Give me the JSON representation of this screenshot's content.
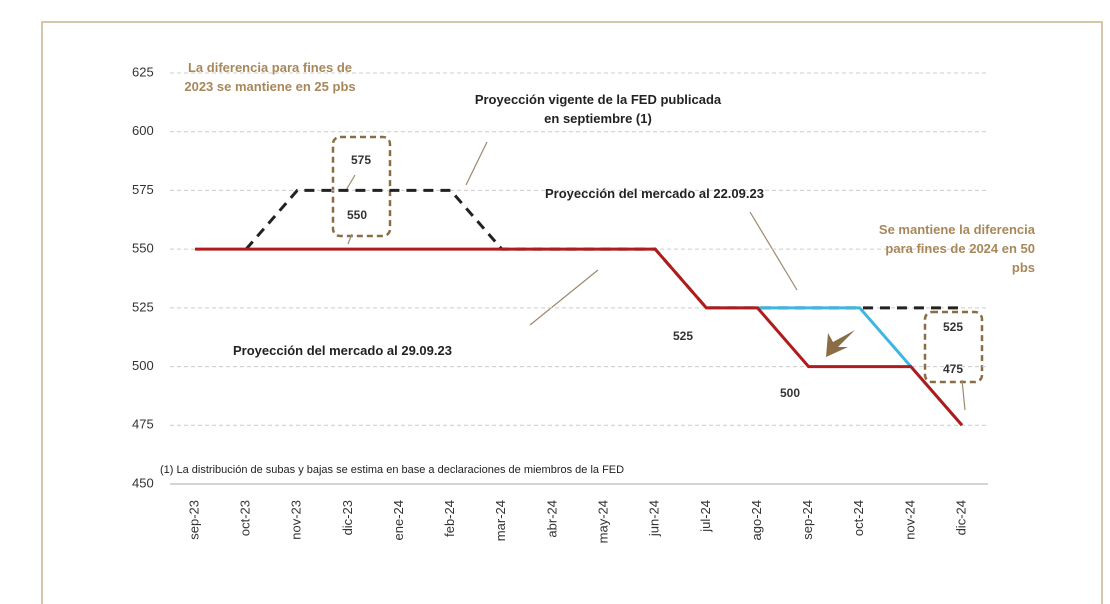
{
  "chart_data": {
    "type": "line",
    "categories": [
      "sep-23",
      "oct-23",
      "nov-23",
      "dic-23",
      "ene-24",
      "feb-24",
      "mar-24",
      "abr-24",
      "may-24",
      "jun-24",
      "jul-24",
      "ago-24",
      "sep-24",
      "oct-24",
      "nov-24",
      "dic-24"
    ],
    "series": [
      {
        "name": "Proyección vigente de la FED publicada en septiembre (1)",
        "color": "#222222",
        "dashed": true,
        "values": [
          null,
          550,
          575,
          575,
          575,
          575,
          550,
          550,
          550,
          550,
          525,
          525,
          525,
          525,
          525,
          525
        ]
      },
      {
        "name": "Proyección del mercado al 22.09.23",
        "color": "#3fb6e0",
        "dashed": false,
        "values": [
          null,
          null,
          null,
          null,
          null,
          null,
          null,
          null,
          null,
          null,
          525,
          525,
          525,
          525,
          500,
          475
        ]
      },
      {
        "name": "Proyección del mercado al 29.09.23",
        "color": "#b01c1c",
        "dashed": false,
        "values": [
          550,
          550,
          550,
          550,
          550,
          550,
          550,
          550,
          550,
          550,
          525,
          525,
          500,
          500,
          500,
          475
        ]
      }
    ],
    "ylim": [
      450,
      625
    ],
    "yticks": [
      450,
      475,
      500,
      525,
      550,
      575,
      600,
      625
    ],
    "grid": true,
    "point_labels": [
      575,
      550,
      525,
      500,
      525,
      475
    ],
    "annotations": [
      "La diferencia para fines de 2023 se mantiene en 25 pbs",
      "Se mantiene la diferencia para fines de 2024 en 50 pbs"
    ],
    "footnote": "(1) La distribución de subas y bajas se estima en base a declaraciones de miembros de la FED"
  }
}
